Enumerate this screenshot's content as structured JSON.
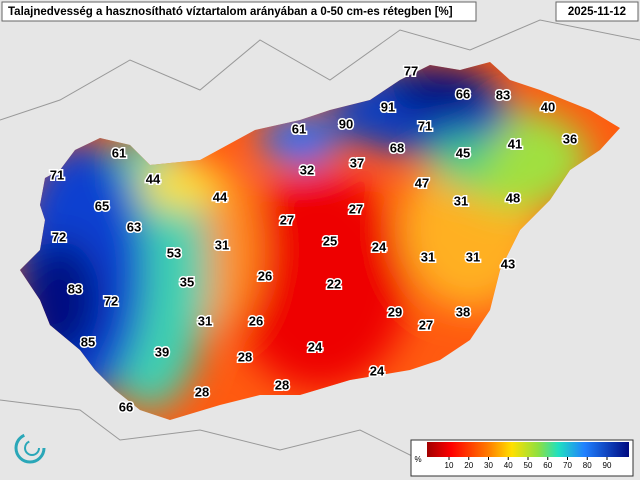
{
  "header": {
    "title": "Talajnedvesség a hasznosítható víztartalom arányában a 0-50 cm-es rétegben [%]",
    "date": "2025-11-12"
  },
  "station_values": [
    77,
    66,
    83,
    91,
    90,
    71,
    61,
    40,
    41,
    36,
    68,
    45,
    37,
    32,
    61,
    71,
    44,
    44,
    47,
    31,
    48,
    65,
    27,
    27,
    63,
    72,
    25,
    24,
    31,
    53,
    31,
    31,
    43,
    26,
    35,
    22,
    83,
    72,
    29,
    38,
    27,
    31,
    26,
    85,
    39,
    24,
    28,
    24,
    28,
    28,
    66
  ],
  "colorbar": {
    "unit": "%",
    "ticks": [
      10,
      20,
      30,
      40,
      50,
      60,
      70,
      80,
      90
    ]
  }
}
